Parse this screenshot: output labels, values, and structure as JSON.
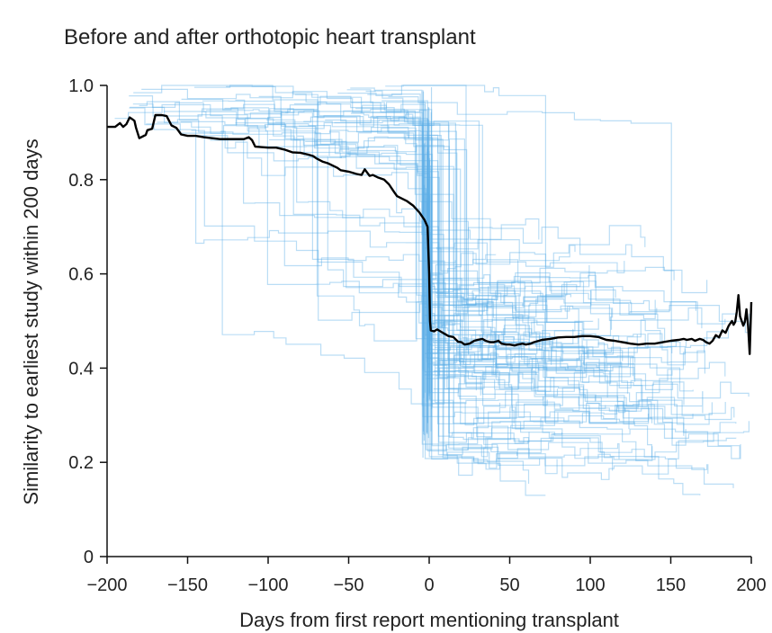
{
  "chart_data": {
    "type": "line",
    "title": "Before and after orthotopic heart transplant",
    "xlabel": "Days from first report mentioning transplant",
    "ylabel": "Similarity to earliest study within 200 days",
    "xlim": [
      -200,
      200
    ],
    "ylim": [
      0,
      1.0
    ],
    "x_ticks": [
      -200,
      -150,
      -100,
      -50,
      0,
      50,
      100,
      150,
      200
    ],
    "x_tick_labels": [
      "−200",
      "−150",
      "−100",
      "−50",
      "0",
      "50",
      "100",
      "150",
      "200"
    ],
    "y_ticks": [
      0,
      0.2,
      0.4,
      0.6,
      0.8,
      1.0
    ],
    "y_tick_labels": [
      "0",
      "0.2",
      "0.4",
      "0.6",
      "0.8",
      "1.0"
    ],
    "grid": false,
    "colors": {
      "individual": "#5aaee6",
      "mean": "#000000"
    },
    "mean_series": {
      "x": [
        -200,
        -195,
        -192,
        -190,
        -188,
        -186,
        -185,
        -183,
        -182,
        -180,
        -176,
        -175,
        -172,
        -170,
        -168,
        -166,
        -163,
        -160,
        -157,
        -154,
        -150,
        -145,
        -140,
        -130,
        -120,
        -115,
        -112,
        -110,
        -108,
        -100,
        -95,
        -90,
        -85,
        -80,
        -75,
        -72,
        -70,
        -66,
        -63,
        -60,
        -57,
        -55,
        -50,
        -45,
        -42,
        -40,
        -37,
        -35,
        -32,
        -28,
        -25,
        -22,
        -20,
        -17,
        -14,
        -12,
        -10,
        -6,
        -3,
        -1,
        0,
        0.5,
        1,
        3,
        5,
        8,
        10,
        12,
        15,
        18,
        20,
        22,
        25,
        28,
        30,
        33,
        35,
        38,
        40,
        43,
        45,
        48,
        50,
        53,
        55,
        58,
        60,
        63,
        65,
        70,
        75,
        80,
        85,
        90,
        95,
        100,
        105,
        110,
        115,
        120,
        125,
        130,
        135,
        140,
        145,
        150,
        155,
        158,
        160,
        163,
        165,
        168,
        170,
        172,
        174,
        176,
        178,
        180,
        182,
        184,
        186,
        188,
        189,
        190,
        191,
        192,
        193,
        194,
        195,
        196,
        197,
        198,
        199,
        200
      ],
      "y": [
        0.912,
        0.912,
        0.92,
        0.912,
        0.918,
        0.932,
        0.93,
        0.925,
        0.91,
        0.888,
        0.895,
        0.905,
        0.908,
        0.937,
        0.937,
        0.937,
        0.935,
        0.915,
        0.91,
        0.896,
        0.893,
        0.893,
        0.89,
        0.886,
        0.886,
        0.886,
        0.89,
        0.884,
        0.87,
        0.868,
        0.868,
        0.864,
        0.858,
        0.857,
        0.853,
        0.85,
        0.845,
        0.838,
        0.835,
        0.83,
        0.825,
        0.82,
        0.817,
        0.812,
        0.81,
        0.822,
        0.808,
        0.81,
        0.805,
        0.8,
        0.79,
        0.775,
        0.765,
        0.76,
        0.755,
        0.75,
        0.745,
        0.73,
        0.715,
        0.7,
        0.6,
        0.5,
        0.48,
        0.478,
        0.482,
        0.476,
        0.472,
        0.468,
        0.466,
        0.456,
        0.455,
        0.45,
        0.452,
        0.458,
        0.46,
        0.462,
        0.458,
        0.455,
        0.455,
        0.458,
        0.452,
        0.45,
        0.45,
        0.448,
        0.45,
        0.452,
        0.45,
        0.452,
        0.455,
        0.46,
        0.462,
        0.465,
        0.466,
        0.466,
        0.468,
        0.468,
        0.466,
        0.46,
        0.458,
        0.455,
        0.452,
        0.45,
        0.452,
        0.452,
        0.455,
        0.458,
        0.46,
        0.462,
        0.46,
        0.462,
        0.458,
        0.462,
        0.46,
        0.455,
        0.452,
        0.458,
        0.47,
        0.465,
        0.48,
        0.475,
        0.49,
        0.5,
        0.492,
        0.498,
        0.52,
        0.555,
        0.51,
        0.5,
        0.49,
        0.498,
        0.525,
        0.49,
        0.43,
        0.54
      ]
    }
  }
}
